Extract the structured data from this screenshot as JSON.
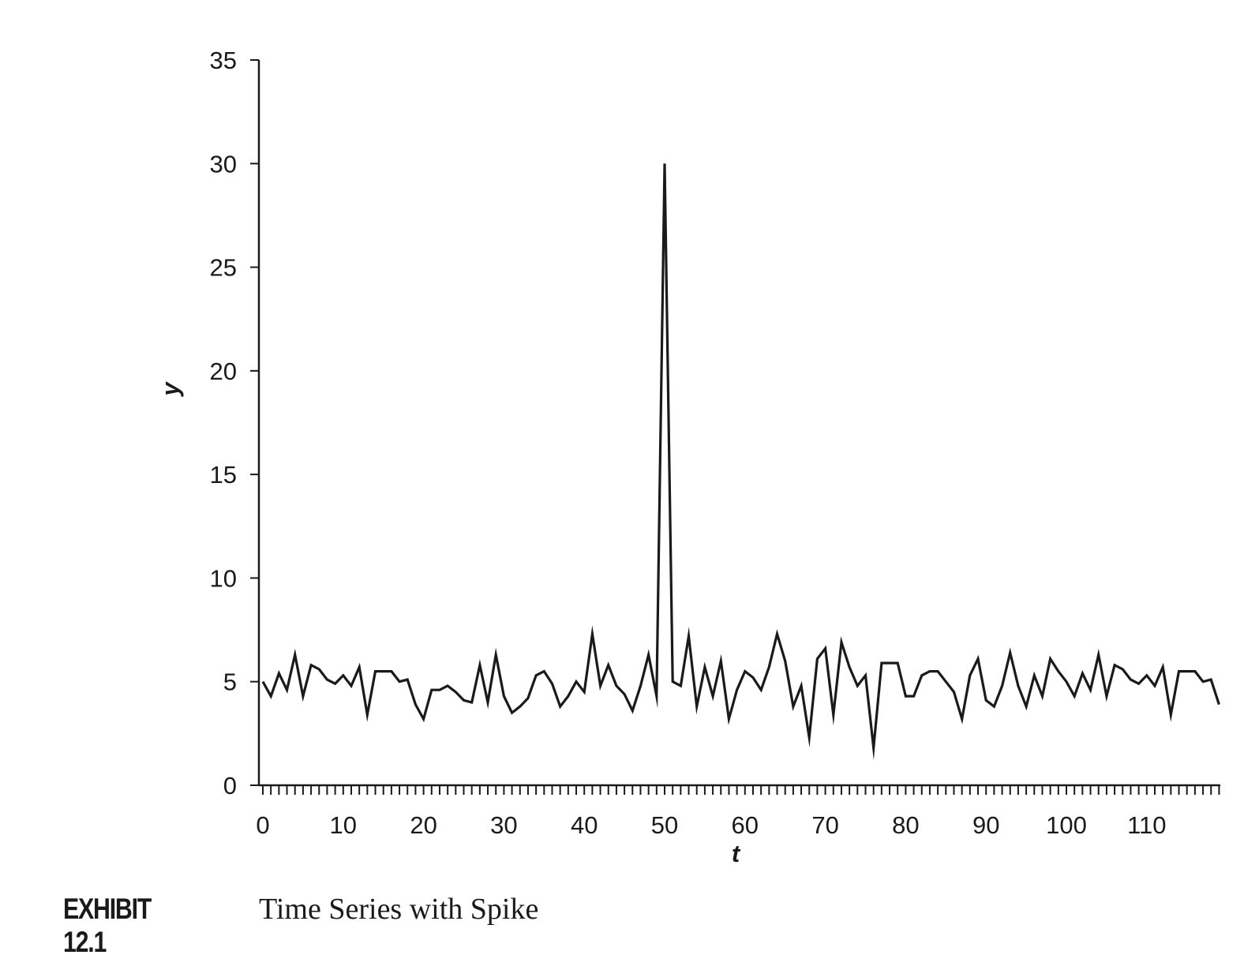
{
  "chart_data": {
    "type": "line",
    "title": "",
    "xlabel": "t",
    "ylabel": "y",
    "xlim": [
      0,
      119
    ],
    "ylim": [
      0,
      35
    ],
    "x_ticks": [
      0,
      10,
      20,
      30,
      40,
      50,
      60,
      70,
      80,
      90,
      100,
      110
    ],
    "y_ticks": [
      0,
      5,
      10,
      15,
      20,
      25,
      30,
      35
    ],
    "grid": false,
    "series": [
      {
        "color": "#1a1a1a",
        "x": [
          0,
          1,
          2,
          3,
          4,
          5,
          6,
          7,
          8,
          9,
          10,
          11,
          12,
          13,
          14,
          15,
          16,
          17,
          18,
          19,
          20,
          21,
          22,
          23,
          24,
          25,
          26,
          27,
          28,
          29,
          30,
          31,
          32,
          33,
          34,
          35,
          36,
          37,
          38,
          39,
          40,
          41,
          42,
          43,
          44,
          45,
          46,
          47,
          48,
          49,
          50,
          51,
          52,
          53,
          54,
          55,
          56,
          57,
          58,
          59,
          60,
          61,
          62,
          63,
          64,
          65,
          66,
          67,
          68,
          69,
          70,
          71,
          72,
          73,
          74,
          75,
          76,
          77,
          78,
          79,
          80,
          81,
          82,
          83,
          84,
          85,
          86,
          87,
          88,
          89,
          90,
          91,
          92,
          93,
          94,
          95,
          96,
          97,
          98,
          99,
          100,
          101,
          102,
          103,
          104,
          105,
          106,
          107,
          108,
          109,
          110,
          111,
          112,
          113,
          114,
          115,
          116,
          117,
          118,
          119
        ],
        "y": [
          5.0,
          4.3,
          5.4,
          4.6,
          6.3,
          4.3,
          5.8,
          5.6,
          5.1,
          4.9,
          5.3,
          4.8,
          5.7,
          3.4,
          5.5,
          5.5,
          5.5,
          5.0,
          5.1,
          3.9,
          3.2,
          4.6,
          4.6,
          4.8,
          4.5,
          4.1,
          4.0,
          5.8,
          4.0,
          6.3,
          4.3,
          3.5,
          3.8,
          4.2,
          5.3,
          5.5,
          4.9,
          3.8,
          4.3,
          5.0,
          4.5,
          7.3,
          4.8,
          5.8,
          4.8,
          4.4,
          3.6,
          4.8,
          6.3,
          4.3,
          30.0,
          5.0,
          4.8,
          7.2,
          3.8,
          5.7,
          4.3,
          6.0,
          3.2,
          4.6,
          5.5,
          5.2,
          4.6,
          5.7,
          7.3,
          6.0,
          3.8,
          4.8,
          2.3,
          6.1,
          6.6,
          3.4,
          6.9,
          5.7,
          4.8,
          5.3,
          1.8,
          5.9,
          5.9,
          5.9,
          4.3,
          4.3,
          5.3,
          5.5,
          5.5,
          5.0,
          4.5,
          3.2,
          5.3,
          6.1,
          4.1,
          3.8,
          4.8,
          6.4,
          4.8,
          3.8,
          5.3,
          4.3,
          6.1,
          5.5,
          5.0,
          4.3,
          5.4,
          4.6,
          6.3,
          4.3,
          5.8,
          5.6,
          5.1,
          4.9,
          5.3,
          4.8,
          5.7,
          3.4,
          5.5,
          5.5,
          5.5,
          5.0,
          5.1,
          3.9
        ]
      }
    ]
  },
  "caption": {
    "label": "EXHIBIT 12.1",
    "title": "Time Series with Spike"
  }
}
